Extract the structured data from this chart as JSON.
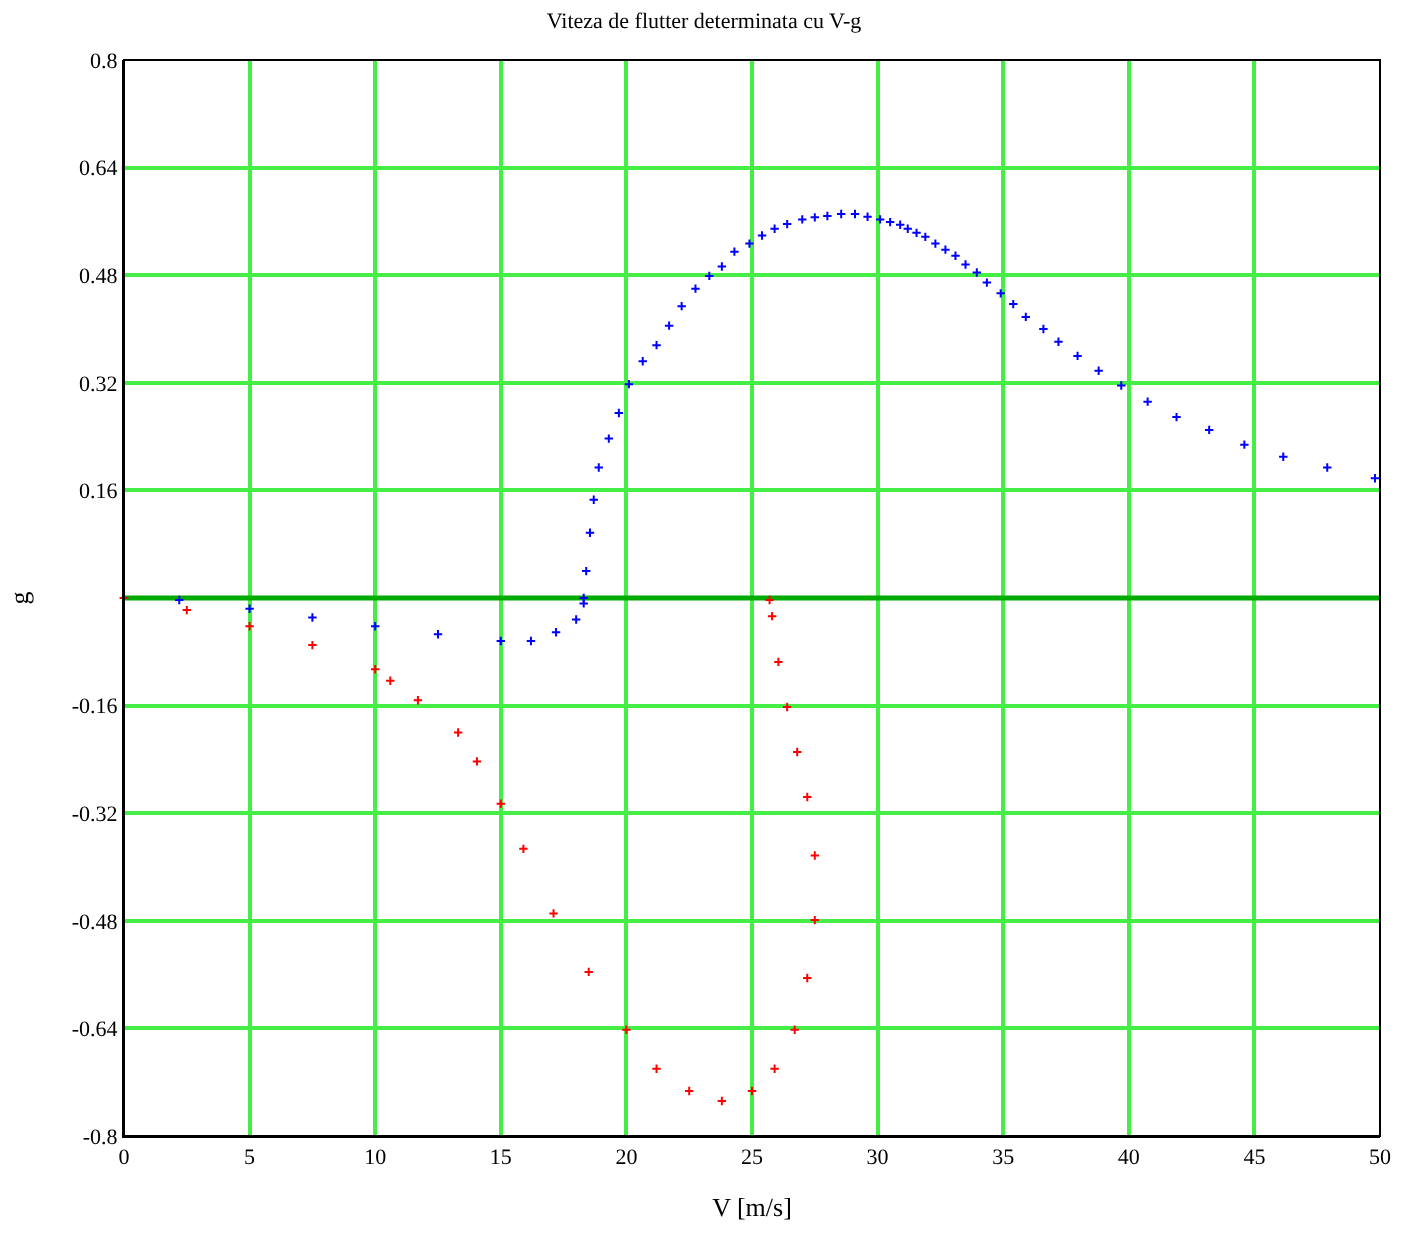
{
  "chart_data": {
    "type": "scatter",
    "title": "Viteza de flutter determinata cu V-g",
    "xlabel": "V [m/s]",
    "ylabel": "g",
    "marker": "cross",
    "grid": true,
    "xlim": [
      0,
      50
    ],
    "xticks": [
      0,
      5,
      10,
      15,
      20,
      25,
      30,
      35,
      40,
      45,
      50
    ],
    "ylim": [
      -0.8,
      0.8
    ],
    "yticks": [
      -0.8,
      -0.64,
      -0.48,
      -0.32,
      -0.16,
      {
        "value": 0,
        "label": null
      },
      0.16,
      0.32,
      0.48,
      0.64,
      0.8
    ],
    "ref_lines": [
      {
        "axis": "y",
        "value": 0,
        "color": "#00aa00"
      }
    ],
    "series": [
      {
        "color": "#0000ff",
        "x": [
          0,
          2.2,
          5,
          7.5,
          10,
          12.5,
          15,
          16.2,
          17.2,
          18.0,
          18.3,
          18.3,
          18.4,
          18.55,
          18.7,
          18.9,
          19.3,
          19.7,
          20.1,
          20.65,
          21.2,
          21.7,
          22.2,
          22.75,
          23.3,
          23.8,
          24.3,
          24.9,
          25.4,
          25.9,
          26.4,
          27.0,
          27.5,
          28.0,
          28.55,
          29.1,
          29.6,
          30.1,
          30.5,
          30.9,
          31.2,
          31.55,
          31.9,
          32.3,
          32.7,
          33.1,
          33.5,
          33.95,
          34.35,
          34.9,
          35.4,
          35.9,
          36.6,
          37.2,
          37.96,
          38.8,
          39.7,
          40.75,
          41.9,
          43.2,
          44.6,
          46.15,
          47.9,
          49.8
        ],
        "values": [
          0,
          -0.003,
          -0.016,
          -0.029,
          -0.042,
          -0.054,
          -0.064,
          -0.064,
          -0.051,
          -0.032,
          -0.008,
          0.0,
          0.04,
          0.097,
          0.146,
          0.194,
          0.237,
          0.275,
          0.318,
          0.352,
          0.376,
          0.405,
          0.434,
          0.46,
          0.479,
          0.493,
          0.515,
          0.527,
          0.539,
          0.549,
          0.556,
          0.563,
          0.566,
          0.568,
          0.571,
          0.571,
          0.567,
          0.563,
          0.559,
          0.555,
          0.549,
          0.543,
          0.537,
          0.527,
          0.518,
          0.509,
          0.496,
          0.484,
          0.469,
          0.453,
          0.437,
          0.418,
          0.4,
          0.381,
          0.36,
          0.338,
          0.316,
          0.292,
          0.269,
          0.25,
          0.228,
          0.21,
          0.194,
          0.178
        ]
      },
      {
        "color": "#ff0000",
        "x": [
          0,
          2.5,
          5,
          7.5,
          10,
          10.6,
          11.7,
          13.3,
          14.05,
          15.0,
          15.9,
          17.1,
          18.5,
          20.0,
          21.2,
          22.5,
          23.8,
          25.0,
          25.9,
          26.7,
          27.2,
          27.5,
          27.5,
          27.2,
          26.8,
          26.4,
          26.05,
          25.8,
          25.7
        ],
        "values": [
          0,
          -0.018,
          -0.042,
          -0.07,
          -0.106,
          -0.123,
          -0.152,
          -0.2,
          -0.243,
          -0.306,
          -0.373,
          -0.469,
          -0.556,
          -0.642,
          -0.7,
          -0.733,
          -0.748,
          -0.733,
          -0.7,
          -0.642,
          -0.565,
          -0.479,
          -0.383,
          -0.296,
          -0.229,
          -0.162,
          -0.095,
          -0.027,
          -0.003
        ]
      }
    ]
  }
}
